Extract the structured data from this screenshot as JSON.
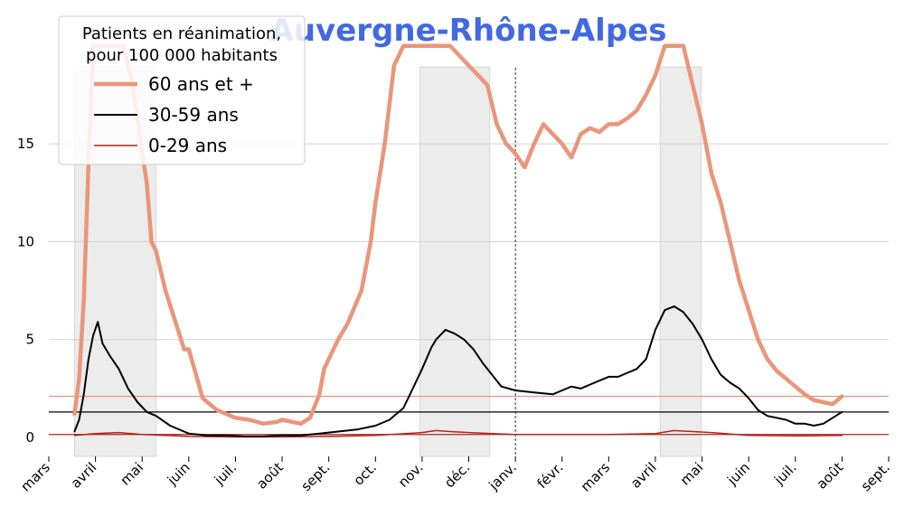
{
  "chart_data": {
    "type": "line",
    "title": "Auvergne-Rhône-Alpes",
    "xlabel": "",
    "ylabel": "",
    "ylim": [
      -0.5,
      20
    ],
    "yticks": [
      0,
      5,
      10,
      15
    ],
    "x_ticks": [
      "mars",
      "avril",
      "mai",
      "juin",
      "juil.",
      "août",
      "sept.",
      "oct.",
      "nov.",
      "déc.",
      "janv.",
      "févr.",
      "mars",
      "avril",
      "mai",
      "juin",
      "juil.",
      "août",
      "sept."
    ],
    "x_range_months": [
      0,
      18
    ],
    "grid": "horizontal",
    "legend": {
      "title": "Patients en réanimation,\npour 100 000 habitants",
      "title_lines": [
        "Patients en réanimation,",
        "pour 100 000 habitants"
      ],
      "placement": "top-left"
    },
    "vertical_marker_month": 10.0,
    "shaded_periods_months": [
      [
        0.55,
        2.3
      ],
      [
        7.95,
        9.45
      ],
      [
        13.1,
        13.98
      ]
    ],
    "x_unit": "months since 1 March 2020",
    "series": [
      {
        "name": "60 ans et +",
        "color": "#e9967a",
        "width": 4.5,
        "reference_level": 2.1,
        "x": [
          0.55,
          0.65,
          0.75,
          0.85,
          0.95,
          1.0,
          1.2,
          1.4,
          1.6,
          1.8,
          2.0,
          2.1,
          2.2,
          2.3,
          2.5,
          2.7,
          2.9,
          3.0,
          3.3,
          3.6,
          4.0,
          4.3,
          4.6,
          4.9,
          5.0,
          5.2,
          5.4,
          5.6,
          5.8,
          5.9,
          6.2,
          6.4,
          6.7,
          6.9,
          7.0,
          7.2,
          7.4,
          7.6,
          7.8,
          7.9,
          8.0,
          8.2,
          8.4,
          8.6,
          8.8,
          9.0,
          9.2,
          9.4,
          9.6,
          9.8,
          10.0,
          10.2,
          10.4,
          10.6,
          10.8,
          11.0,
          11.2,
          11.4,
          11.6,
          11.8,
          12.0,
          12.2,
          12.4,
          12.6,
          12.8,
          13.0,
          13.2,
          13.4,
          13.6,
          13.8,
          14.0,
          14.2,
          14.4,
          14.6,
          14.8,
          15.0,
          15.2,
          15.4,
          15.6,
          15.8,
          16.0,
          16.2,
          16.4,
          16.6,
          16.8,
          17.0
        ],
        "values": [
          1.2,
          3.0,
          7.0,
          14.0,
          20.0,
          20.0,
          20.0,
          20.0,
          20.0,
          18.0,
          14.5,
          13.0,
          10.0,
          9.5,
          7.5,
          6.0,
          4.5,
          4.5,
          2.0,
          1.4,
          1.0,
          0.9,
          0.7,
          0.8,
          0.9,
          0.8,
          0.7,
          1.0,
          2.2,
          3.5,
          5.0,
          5.8,
          7.5,
          10.0,
          12.0,
          15.0,
          19.0,
          20.0,
          20.0,
          20.0,
          20.0,
          20.0,
          20.0,
          20.0,
          19.5,
          19.0,
          18.5,
          18.0,
          16.0,
          15.0,
          14.5,
          13.8,
          15.0,
          16.0,
          15.5,
          15.0,
          14.3,
          15.5,
          15.8,
          15.6,
          16.0,
          16.0,
          16.3,
          16.7,
          17.5,
          18.5,
          20.0,
          20.0,
          20.0,
          18.0,
          16.0,
          13.5,
          12.0,
          10.0,
          8.0,
          6.5,
          5.0,
          4.0,
          3.4,
          3.0,
          2.6,
          2.2,
          1.9,
          1.8,
          1.7,
          2.1
        ]
      },
      {
        "name": "30-59 ans",
        "color": "#000000",
        "width": 2,
        "reference_level": 1.3,
        "x": [
          0.55,
          0.65,
          0.75,
          0.85,
          0.95,
          1.05,
          1.15,
          1.3,
          1.5,
          1.7,
          1.9,
          2.1,
          2.3,
          2.6,
          3.0,
          3.4,
          3.8,
          4.2,
          4.6,
          5.0,
          5.4,
          5.8,
          6.2,
          6.6,
          7.0,
          7.3,
          7.6,
          7.8,
          8.0,
          8.2,
          8.3,
          8.5,
          8.7,
          8.9,
          9.1,
          9.3,
          9.5,
          9.7,
          10.0,
          10.4,
          10.8,
          11.0,
          11.2,
          11.4,
          11.6,
          11.8,
          12.0,
          12.2,
          12.4,
          12.6,
          12.8,
          13.0,
          13.2,
          13.4,
          13.6,
          13.8,
          14.0,
          14.2,
          14.4,
          14.6,
          14.8,
          15.0,
          15.2,
          15.4,
          15.6,
          15.8,
          16.0,
          16.2,
          16.4,
          16.6,
          16.8,
          17.0
        ],
        "values": [
          0.3,
          0.9,
          2.2,
          4.0,
          5.2,
          5.9,
          4.8,
          4.2,
          3.5,
          2.5,
          1.8,
          1.3,
          1.1,
          0.6,
          0.2,
          0.1,
          0.1,
          0.05,
          0.05,
          0.1,
          0.1,
          0.2,
          0.3,
          0.4,
          0.6,
          0.9,
          1.5,
          2.5,
          3.5,
          4.6,
          5.0,
          5.5,
          5.3,
          5.0,
          4.5,
          3.8,
          3.2,
          2.6,
          2.4,
          2.3,
          2.2,
          2.4,
          2.6,
          2.5,
          2.7,
          2.9,
          3.1,
          3.1,
          3.3,
          3.5,
          4.0,
          5.5,
          6.5,
          6.7,
          6.4,
          5.8,
          5.0,
          4.0,
          3.2,
          2.8,
          2.5,
          2.0,
          1.4,
          1.1,
          1.0,
          0.9,
          0.7,
          0.7,
          0.6,
          0.7,
          1.0,
          1.3
        ]
      },
      {
        "name": "0-29 ans",
        "color": "#b22222",
        "width": 1.5,
        "reference_level": 0.15,
        "x": [
          0.55,
          1.0,
          1.5,
          2.0,
          2.5,
          3.0,
          4.0,
          5.0,
          6.0,
          7.0,
          8.0,
          8.3,
          8.6,
          9.0,
          9.5,
          10.0,
          11.0,
          12.0,
          13.0,
          13.4,
          13.8,
          14.2,
          15.0,
          16.0,
          17.0
        ],
        "values": [
          0.1,
          0.2,
          0.25,
          0.15,
          0.1,
          0.05,
          0.03,
          0.03,
          0.05,
          0.1,
          0.25,
          0.35,
          0.3,
          0.25,
          0.2,
          0.15,
          0.15,
          0.15,
          0.2,
          0.35,
          0.3,
          0.25,
          0.1,
          0.08,
          0.1
        ]
      }
    ]
  }
}
